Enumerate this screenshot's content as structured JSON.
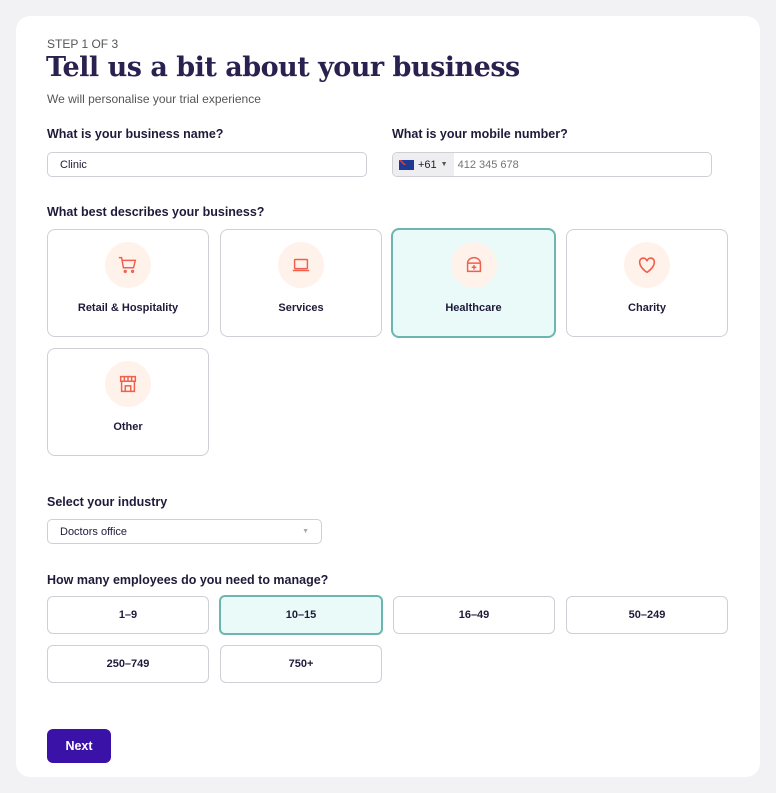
{
  "step": "STEP 1 OF 3",
  "title": "Tell us a bit about your business",
  "subtitle": "We will personalise your trial experience",
  "business_name": {
    "label": "What is your business name?",
    "value": "Clinic"
  },
  "mobile": {
    "label": "What is your mobile number?",
    "country_code": "+61",
    "country_flag": "australia-flag",
    "placeholder": "412 345 678"
  },
  "business_type": {
    "label": "What best describes your business?",
    "selected": "Healthcare",
    "options": [
      {
        "label": "Retail & Hospitality",
        "icon": "cart-icon"
      },
      {
        "label": "Services",
        "icon": "laptop-icon"
      },
      {
        "label": "Healthcare",
        "icon": "medical-bag-icon"
      },
      {
        "label": "Charity",
        "icon": "heart-icon"
      },
      {
        "label": "Other",
        "icon": "store-icon"
      }
    ]
  },
  "industry": {
    "label": "Select your industry",
    "value": "Doctors office"
  },
  "employees": {
    "label": "How many employees do you need to manage?",
    "selected": "10–15",
    "options": [
      "1–9",
      "10–15",
      "16–49",
      "50–249",
      "250–749",
      "750+"
    ]
  },
  "next_label": "Next",
  "colors": {
    "accent": "#3b12a8",
    "selected_border": "#6bb7b0",
    "selected_bg": "#eafaf8",
    "icon": "#f0604d"
  }
}
